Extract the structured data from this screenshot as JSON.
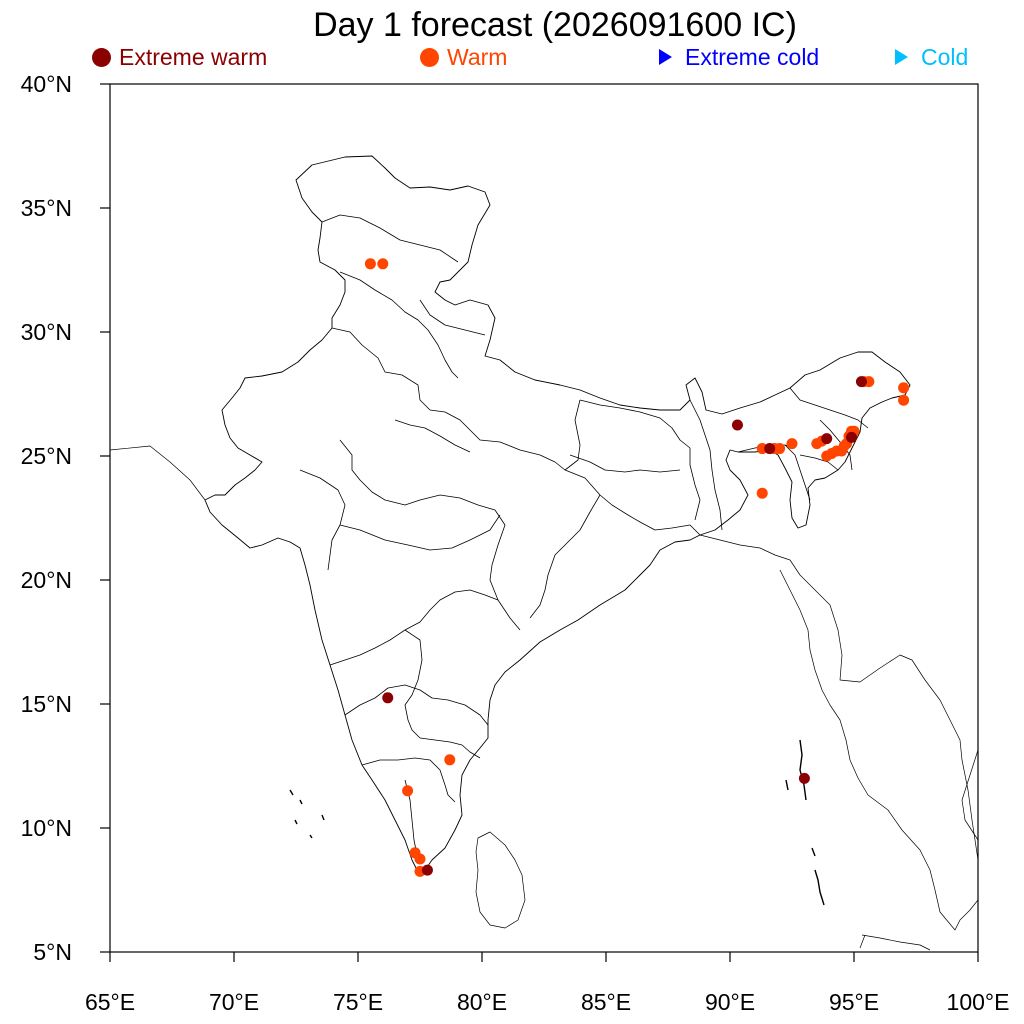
{
  "title": "Day 1 forecast (2026091600 IC)",
  "legend": [
    {
      "label": "Extreme warm",
      "marker": "circle",
      "color": "#8b0000"
    },
    {
      "label": "Warm",
      "marker": "circle",
      "color": "#ff4500"
    },
    {
      "label": "Extreme cold",
      "marker": "triangle",
      "color": "#0000ff"
    },
    {
      "label": "Cold",
      "marker": "triangle",
      "color": "#00bfff"
    }
  ],
  "map": {
    "lon_range": [
      65,
      100
    ],
    "lat_range": [
      5,
      40
    ],
    "x_ticks": [
      65,
      70,
      75,
      80,
      85,
      90,
      95,
      100
    ],
    "x_tick_labels": [
      "65°E",
      "70°E",
      "75°E",
      "80°E",
      "85°E",
      "90°E",
      "95°E",
      "100°E"
    ],
    "y_ticks": [
      40,
      35,
      30,
      25,
      20,
      15,
      10,
      5
    ],
    "y_tick_labels": [
      "40°N",
      "35°N",
      "30°N",
      "25°N",
      "20°N",
      "15°N",
      "10°N",
      "5°N"
    ]
  },
  "points": {
    "extreme_warm": [
      {
        "lon": 90.3,
        "lat": 26.25
      },
      {
        "lon": 76.2,
        "lat": 15.25
      },
      {
        "lon": 93.0,
        "lat": 12.0
      },
      {
        "lon": 77.8,
        "lat": 8.3
      },
      {
        "lon": 95.3,
        "lat": 28.0
      },
      {
        "lon": 94.9,
        "lat": 25.75
      },
      {
        "lon": 93.9,
        "lat": 25.7
      },
      {
        "lon": 91.6,
        "lat": 25.3
      }
    ],
    "warm": [
      {
        "lon": 75.5,
        "lat": 32.75
      },
      {
        "lon": 76.0,
        "lat": 32.75
      },
      {
        "lon": 97.0,
        "lat": 27.75
      },
      {
        "lon": 97.0,
        "lat": 27.25
      },
      {
        "lon": 95.6,
        "lat": 28.0
      },
      {
        "lon": 95.4,
        "lat": 28.0
      },
      {
        "lon": 91.3,
        "lat": 25.3
      },
      {
        "lon": 91.8,
        "lat": 25.3
      },
      {
        "lon": 92.0,
        "lat": 25.3
      },
      {
        "lon": 92.5,
        "lat": 25.5
      },
      {
        "lon": 91.3,
        "lat": 23.5
      },
      {
        "lon": 93.5,
        "lat": 25.5
      },
      {
        "lon": 93.7,
        "lat": 25.6
      },
      {
        "lon": 94.1,
        "lat": 25.1
      },
      {
        "lon": 94.3,
        "lat": 25.2
      },
      {
        "lon": 94.5,
        "lat": 25.2
      },
      {
        "lon": 94.7,
        "lat": 25.5
      },
      {
        "lon": 94.8,
        "lat": 25.8
      },
      {
        "lon": 94.9,
        "lat": 26.0
      },
      {
        "lon": 94.6,
        "lat": 25.4
      },
      {
        "lon": 93.9,
        "lat": 25.0
      },
      {
        "lon": 95.0,
        "lat": 26.0
      },
      {
        "lon": 78.7,
        "lat": 12.75
      },
      {
        "lon": 77.0,
        "lat": 11.5
      },
      {
        "lon": 77.3,
        "lat": 9.0
      },
      {
        "lon": 77.5,
        "lat": 8.75
      },
      {
        "lon": 77.5,
        "lat": 8.25
      }
    ],
    "extreme_cold": [],
    "cold": []
  }
}
